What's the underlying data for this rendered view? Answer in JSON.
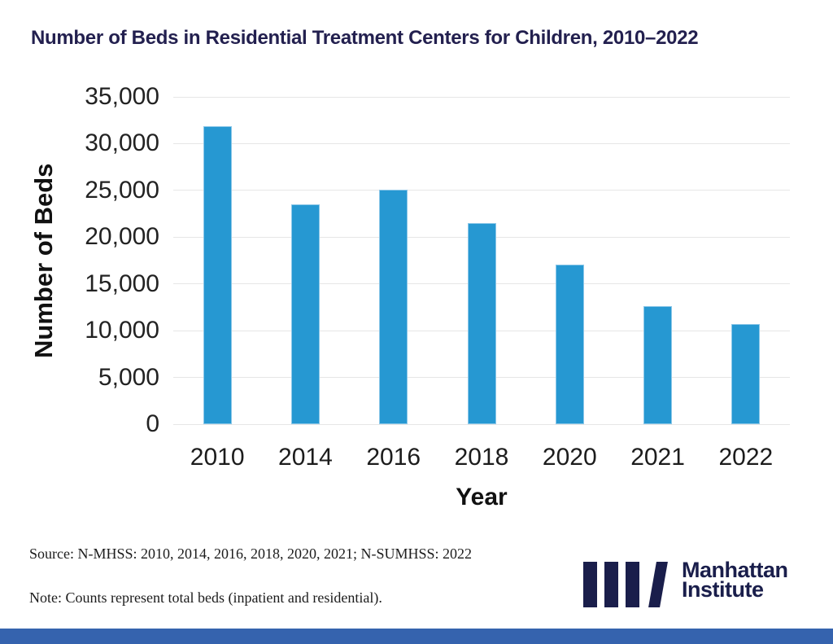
{
  "title": "Number of Beds in Residential Treatment Centers for Children, 2010–2022",
  "chart_data": {
    "type": "bar",
    "categories": [
      "2010",
      "2014",
      "2016",
      "2018",
      "2020",
      "2021",
      "2022"
    ],
    "values": [
      31900,
      23500,
      25100,
      21500,
      17100,
      12600,
      10750
    ],
    "title": "Number of Beds in Residential Treatment Centers for Children, 2010–2022",
    "xlabel": "Year",
    "ylabel": "Number of Beds",
    "ylim": [
      0,
      35000
    ],
    "ytick_step": 5000,
    "ytick_labels": [
      "0",
      "5,000",
      "10,000",
      "15,000",
      "20,000",
      "25,000",
      "30,000",
      "35,000"
    ],
    "grid": true,
    "legend": "none",
    "bar_color": "#2698d2"
  },
  "footer": {
    "source": "Source: N-MHSS: 2010, 2014, 2016, 2018, 2020, 2021; N-SUMHSS: 2022",
    "note": "Note: Counts represent total beds (inpatient and residential)."
  },
  "logo": {
    "line1": "Manhattan",
    "line2": "Institute"
  },
  "colors": {
    "title_navy": "#23204f",
    "bar_blue": "#2698d2",
    "gridline_gray": "#e6e6e6",
    "footer_strip_blue": "#3563ae",
    "logo_navy": "#1a1e4b"
  }
}
